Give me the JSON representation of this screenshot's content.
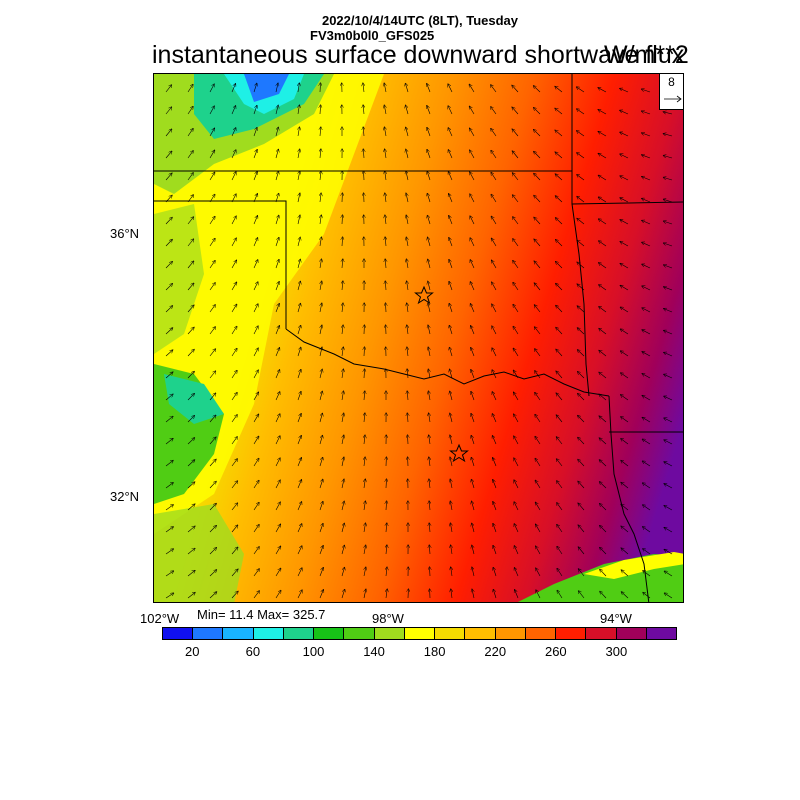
{
  "header": {
    "date_line": "2022/10/4/14UTC (8LT), Tuesday",
    "model_line": "FV3m0b0l0_GFS025",
    "title": "instantaneous surface downward shortwave flux",
    "units": "W/m**2"
  },
  "map": {
    "lat_labels": [
      "36°N",
      "32°N"
    ],
    "lon_labels": [
      "102°W",
      "98°W",
      "94°W"
    ],
    "markers": [
      "star",
      "star"
    ],
    "wind_vector_reference": "8",
    "stats": "Min= 11.4 Max= 325.7"
  },
  "colorbar": {
    "colors": [
      "#1010f0",
      "#1e78ff",
      "#19b4ff",
      "#1ef0e6",
      "#1ed28c",
      "#17c317",
      "#50cd14",
      "#a0dc1e",
      "#ffff00",
      "#f5dc00",
      "#ffbe00",
      "#ff9600",
      "#ff6400",
      "#ff1e00",
      "#d70f28",
      "#a0005a",
      "#6e0aa0"
    ],
    "labels": [
      "20",
      "60",
      "100",
      "140",
      "180",
      "220",
      "260",
      "300"
    ]
  }
}
